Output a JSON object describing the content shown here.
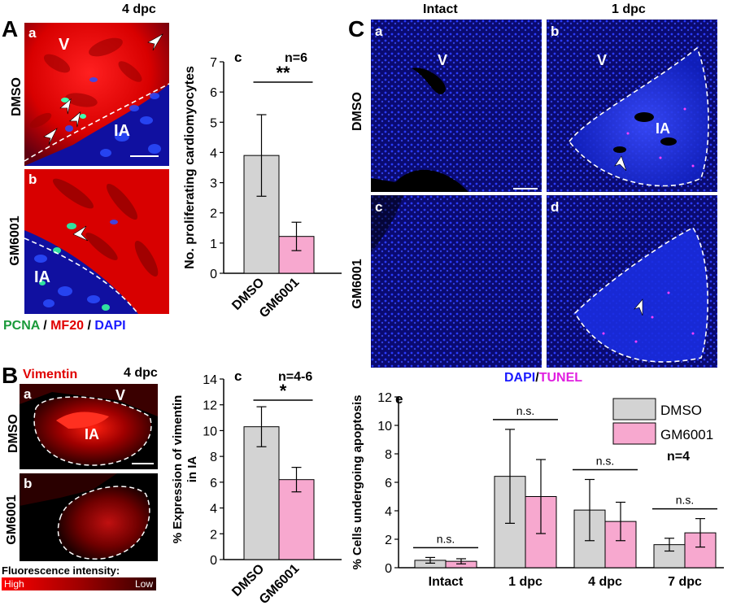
{
  "panelA": {
    "letter": "A",
    "timepoint": "4 dpc",
    "sub_a": "a",
    "sub_b": "b",
    "label_V": "V",
    "label_IA_a": "IA",
    "label_IA_b": "IA",
    "row_dmso": "DMSO",
    "row_gm": "GM6001",
    "legend": {
      "pcna": "PCNA",
      "sep1": " / ",
      "mf20": "MF20",
      "sep2": " / ",
      "dapi": "DAPI"
    },
    "colors": {
      "pcna": "#1a9a3a",
      "mf20": "#e00000",
      "dapi": "#1a1aff"
    }
  },
  "panelB": {
    "letter": "B",
    "stain": "Vimentin",
    "timepoint": "4 dpc",
    "sub_a": "a",
    "sub_b": "b",
    "label_V": "V",
    "label_IA": "IA",
    "row_dmso": "DMSO",
    "row_gm": "GM6001",
    "intensity_title": "Fluorescence intensity:",
    "high": "High",
    "low": "Low"
  },
  "panelC": {
    "letter": "C",
    "col_intact": "Intact",
    "col_1dpc": "1 dpc",
    "sub_a": "a",
    "sub_b": "b",
    "sub_c": "c",
    "sub_d": "d",
    "label_V_a": "V",
    "label_V_b": "V",
    "label_IA": "IA",
    "row_dmso": "DMSO",
    "row_gm": "GM6001",
    "legend_dapi": "DAPI",
    "legend_sep": "/",
    "legend_tunel": "TUNEL",
    "tunel_color": "#e020e0"
  },
  "chart_data": [
    {
      "id": "A-c",
      "type": "bar",
      "panel_label": "c",
      "annotation": "n=6",
      "significance": "**",
      "categories": [
        "DMSO",
        "GM6001"
      ],
      "values": [
        3.9,
        1.22
      ],
      "errors": [
        1.35,
        0.47
      ],
      "colors": [
        "#d3d3d3",
        "#f7a8cf"
      ],
      "ylabel": "No. proliferating cardiomyocytes",
      "ylim": [
        0,
        7
      ],
      "yticks": [
        "0",
        "1",
        "2",
        "3",
        "4",
        "5",
        "6",
        "7"
      ]
    },
    {
      "id": "B-c",
      "type": "bar",
      "panel_label": "c",
      "annotation": "n=4-6",
      "significance": "*",
      "categories": [
        "DMSO",
        "GM6001"
      ],
      "values": [
        10.3,
        6.2
      ],
      "errors": [
        1.55,
        0.95
      ],
      "colors": [
        "#d3d3d3",
        "#f7a8cf"
      ],
      "ylabel_line1": "% Expression of vimentin",
      "ylabel_line2": "in IA",
      "ylim": [
        0,
        14
      ],
      "yticks": [
        "0",
        "2",
        "4",
        "6",
        "8",
        "10",
        "12",
        "14"
      ]
    },
    {
      "id": "C-e",
      "type": "bar",
      "panel_label": "e",
      "annotation": "n=4",
      "categories": [
        "Intact",
        "1 dpc",
        "4 dpc",
        "7 dpc"
      ],
      "significance": [
        "n.s.",
        "n.s.",
        "n.s.",
        "n.s."
      ],
      "series": [
        {
          "name": "DMSO",
          "color": "#d3d3d3",
          "values": [
            0.52,
            6.42,
            4.05,
            1.62
          ],
          "errors": [
            0.2,
            3.3,
            2.15,
            0.45
          ]
        },
        {
          "name": "GM6001",
          "color": "#f7a8cf",
          "values": [
            0.45,
            5.0,
            3.25,
            2.45
          ],
          "errors": [
            0.18,
            2.6,
            1.35,
            1.0
          ]
        }
      ],
      "ylabel": "% Cells undergoing apoptosis",
      "ylim": [
        0,
        12
      ],
      "yticks": [
        "0",
        "2",
        "4",
        "6",
        "8",
        "10",
        "12"
      ],
      "legend_position": "top-right"
    }
  ]
}
